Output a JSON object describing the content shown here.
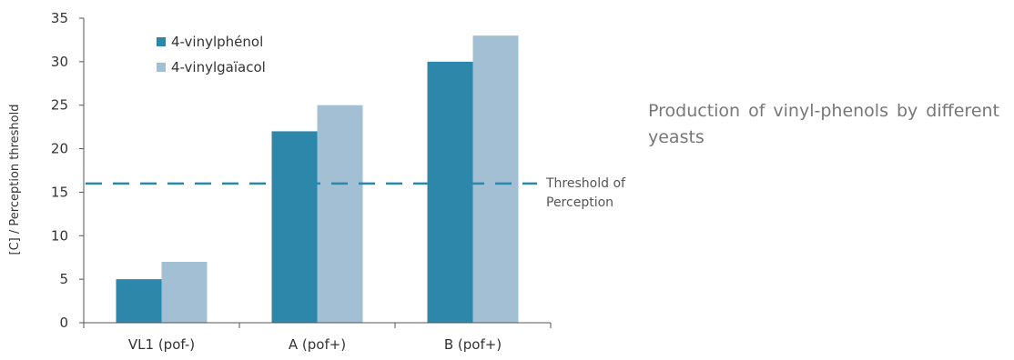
{
  "chart_data": {
    "type": "bar",
    "title": "",
    "xlabel": "",
    "ylabel": "[C] / Perception threshold",
    "categories": [
      "VL1 (pof-)",
      "A (pof+)",
      "B (pof+)"
    ],
    "series": [
      {
        "name": "4-vinylphénol",
        "values": [
          5,
          22,
          30
        ],
        "color": "#2d87aa"
      },
      {
        "name": "4-vinylgaïacol",
        "values": [
          7,
          25,
          33
        ],
        "color": "#a2bfd4"
      }
    ],
    "ylim": [
      0,
      35
    ],
    "yticks": [
      0,
      5,
      10,
      15,
      20,
      25,
      30,
      35
    ],
    "grid": false,
    "legend_position": "top-left",
    "threshold": {
      "value": 16,
      "label_line1": "Threshold of",
      "label_line2": "Perception",
      "color": "#2d87aa",
      "style": "dashed"
    }
  },
  "caption": "Production of vinyl-phenols by different yeasts"
}
